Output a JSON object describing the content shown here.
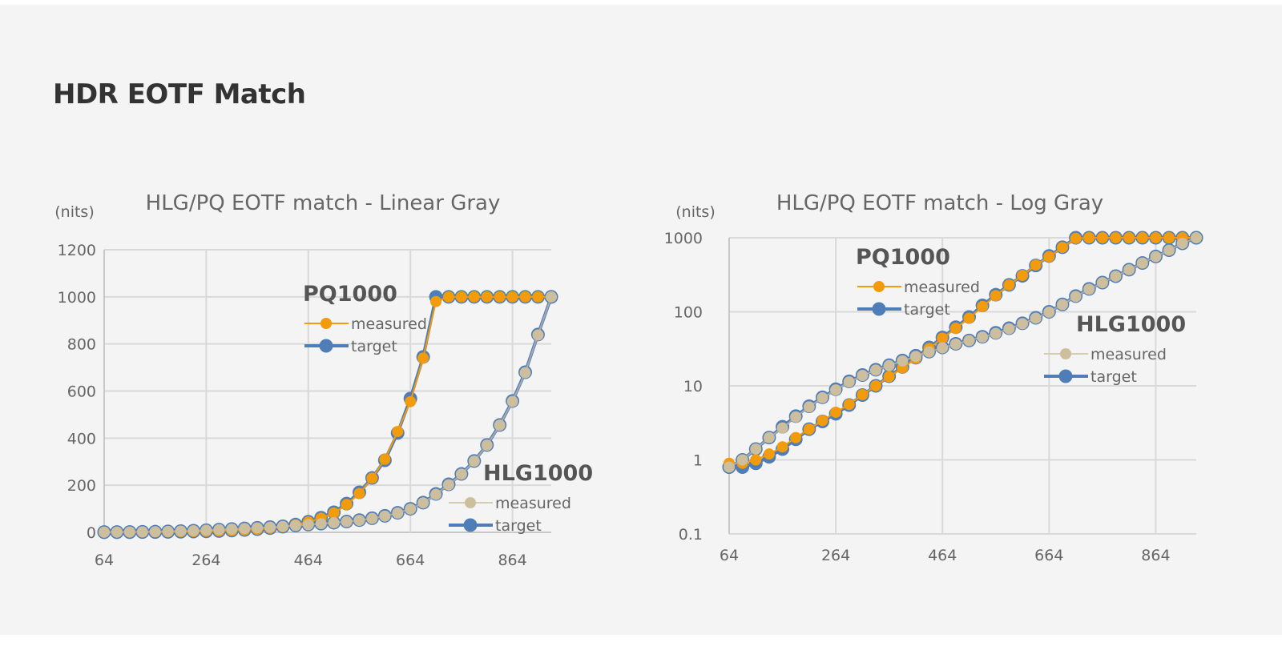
{
  "page": {
    "title": "HDR EOTF Match"
  },
  "colors": {
    "pq_measured": "#f29b0c",
    "target": "#4f7db8",
    "hlg_measured": "#cdbf9e",
    "grid": "#d9d9d9"
  },
  "chart_data": [
    {
      "type": "line",
      "title": "HLG/PQ EOTF match - Linear Gray",
      "ylabel": "(nits)",
      "yscale": "linear",
      "ylim": [
        0,
        1200
      ],
      "yticks": [
        "0",
        "200",
        "400",
        "600",
        "800",
        "1000",
        "1200"
      ],
      "ytick_values": [
        0,
        200,
        400,
        600,
        800,
        1000,
        1200
      ],
      "xlim": [
        64,
        940
      ],
      "xticks": [
        "64",
        "264",
        "464",
        "664",
        "864"
      ],
      "xtick_values": [
        64,
        264,
        464,
        664,
        864
      ],
      "grid": true,
      "x": [
        64,
        89,
        114,
        139,
        164,
        189,
        214,
        239,
        264,
        289,
        314,
        339,
        364,
        389,
        414,
        439,
        464,
        489,
        514,
        539,
        564,
        589,
        614,
        639,
        664,
        689,
        714,
        739,
        764,
        789,
        814,
        839,
        864,
        889,
        914,
        940
      ],
      "groups": [
        {
          "name": "PQ1000",
          "legend": "upper-middle",
          "series": [
            {
              "name": "measured",
              "color_key": "pq_measured",
              "values": [
                0.9,
                0.9,
                1.0,
                1.2,
                1.5,
                2.0,
                2.6,
                3.4,
                4.4,
                5.6,
                7.6,
                10,
                13.3,
                17.5,
                23.5,
                32,
                44,
                60,
                82,
                118,
                165,
                230,
                310,
                428,
                555,
                740,
                980,
                1000,
                1000,
                1000,
                1000,
                1000,
                1000,
                1000,
                1000,
                1000
              ]
            },
            {
              "name": "target",
              "color_key": "target",
              "values": [
                0.8,
                0.8,
                0.9,
                1.1,
                1.4,
                1.9,
                2.6,
                3.3,
                4.2,
                5.5,
                7.5,
                10,
                13.5,
                18,
                24,
                33,
                45,
                62,
                85,
                122,
                170,
                231,
                306,
                422,
                568,
                745,
                1000,
                1000,
                1000,
                1000,
                1000,
                1000,
                1000,
                1000,
                1000,
                1000
              ]
            }
          ]
        },
        {
          "name": "HLG1000",
          "legend": "lower-right",
          "series": [
            {
              "name": "measured",
              "color_key": "hlg_measured",
              "values": [
                0.8,
                1.0,
                1.4,
                2.0,
                2.7,
                3.8,
                5.2,
                6.9,
                8.8,
                11.3,
                13.8,
                16.3,
                18.8,
                21.7,
                25,
                28.7,
                32.6,
                36.6,
                40.8,
                45.5,
                51,
                59,
                69,
                82,
                99,
                125,
                161,
                202,
                247,
                302,
                370,
                455,
                556,
                678,
                838,
                1000
              ]
            },
            {
              "name": "target",
              "color_key": "target",
              "values": [
                0.8,
                1.0,
                1.4,
                2.0,
                2.8,
                3.9,
                5.3,
                7.0,
                9.0,
                11.5,
                14,
                16.5,
                19,
                22,
                25.5,
                29,
                33,
                37,
                41,
                46,
                52,
                60,
                70,
                83,
                100,
                126,
                163,
                204,
                248,
                303,
                371,
                456,
                558,
                680,
                840,
                1000
              ]
            }
          ]
        }
      ]
    },
    {
      "type": "line",
      "title": "HLG/PQ EOTF match - Log Gray",
      "ylabel": "(nits)",
      "yscale": "log",
      "ylim": [
        0.1,
        1000
      ],
      "yticks": [
        "0.1",
        "1",
        "10",
        "100",
        "1000"
      ],
      "ytick_values": [
        0.1,
        1,
        10,
        100,
        1000
      ],
      "xlim": [
        64,
        940
      ],
      "xticks": [
        "64",
        "264",
        "464",
        "664",
        "864"
      ],
      "xtick_values": [
        64,
        264,
        464,
        664,
        864
      ],
      "grid": true,
      "x": [
        64,
        89,
        114,
        139,
        164,
        189,
        214,
        239,
        264,
        289,
        314,
        339,
        364,
        389,
        414,
        439,
        464,
        489,
        514,
        539,
        564,
        589,
        614,
        639,
        664,
        689,
        714,
        739,
        764,
        789,
        814,
        839,
        864,
        889,
        914,
        940
      ],
      "groups": [
        {
          "name": "PQ1000",
          "legend": "upper-left",
          "series": [
            {
              "name": "measured",
              "color_key": "pq_measured",
              "values": [
                0.9,
                0.9,
                1.0,
                1.2,
                1.5,
                2.0,
                2.6,
                3.4,
                4.4,
                5.6,
                7.6,
                10,
                13.3,
                17.5,
                23.5,
                32,
                44,
                60,
                82,
                118,
                165,
                230,
                310,
                428,
                555,
                740,
                980,
                1000,
                1000,
                1000,
                1000,
                1000,
                1000,
                1000,
                1000,
                1000
              ]
            },
            {
              "name": "target",
              "color_key": "target",
              "values": [
                0.8,
                0.8,
                0.9,
                1.1,
                1.4,
                1.9,
                2.6,
                3.3,
                4.2,
                5.5,
                7.5,
                10,
                13.5,
                18,
                24,
                33,
                45,
                62,
                85,
                122,
                170,
                231,
                306,
                422,
                568,
                745,
                1000,
                1000,
                1000,
                1000,
                1000,
                1000,
                1000,
                1000,
                1000,
                1000
              ]
            }
          ]
        },
        {
          "name": "HLG1000",
          "legend": "middle-right",
          "series": [
            {
              "name": "measured",
              "color_key": "hlg_measured",
              "values": [
                0.8,
                1.0,
                1.4,
                2.0,
                2.7,
                3.8,
                5.2,
                6.9,
                8.8,
                11.3,
                13.8,
                16.3,
                18.8,
                21.7,
                25,
                28.7,
                32.6,
                36.6,
                40.8,
                45.5,
                51,
                59,
                69,
                82,
                99,
                125,
                161,
                202,
                247,
                302,
                370,
                455,
                556,
                678,
                838,
                1000
              ]
            },
            {
              "name": "target",
              "color_key": "target",
              "values": [
                0.8,
                1.0,
                1.4,
                2.0,
                2.8,
                3.9,
                5.3,
                7.0,
                9.0,
                11.5,
                14,
                16.5,
                19,
                22,
                25.5,
                29,
                33,
                37,
                41,
                46,
                52,
                60,
                70,
                83,
                100,
                126,
                163,
                204,
                248,
                303,
                371,
                456,
                558,
                680,
                840,
                1000
              ]
            }
          ]
        }
      ]
    }
  ]
}
